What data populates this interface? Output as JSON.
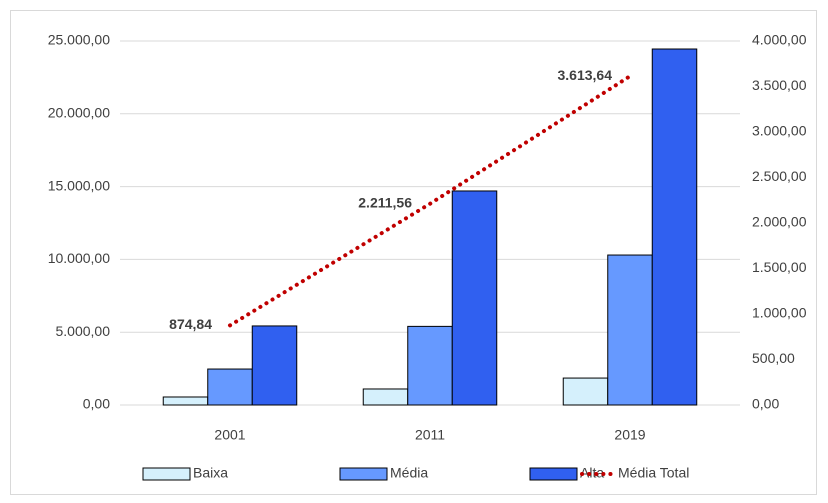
{
  "chart_data": {
    "type": "bar",
    "categories": [
      "2001",
      "2011",
      "2019"
    ],
    "series": [
      {
        "name": "Baixa",
        "color": "#d5f0fc",
        "values": [
          550,
          1100,
          1850
        ]
      },
      {
        "name": "Média",
        "color": "#6699ff",
        "values": [
          2470,
          5400,
          10300
        ]
      },
      {
        "name": "Alta",
        "color": "#3060f0",
        "values": [
          5430,
          14700,
          24450
        ]
      },
      {
        "name": "Média Total",
        "type": "line",
        "axis": "y2",
        "color": "#c00000",
        "values": [
          874.84,
          2211.56,
          3613.64
        ],
        "value_labels": [
          "874,84",
          "2.211,56",
          "3.613,64"
        ]
      }
    ],
    "ylim": [
      0,
      25000
    ],
    "yticks": [
      {
        "value": 0,
        "label": "0,00"
      },
      {
        "value": 5000,
        "label": "5.000,00"
      },
      {
        "value": 10000,
        "label": "10.000,00"
      },
      {
        "value": 15000,
        "label": "15.000,00"
      },
      {
        "value": 20000,
        "label": "20.000,00"
      },
      {
        "value": 25000,
        "label": "25.000,00"
      }
    ],
    "y2lim": [
      0,
      4000
    ],
    "y2ticks": [
      {
        "value": 0,
        "label": "0,00"
      },
      {
        "value": 500,
        "label": "500,00"
      },
      {
        "value": 1000,
        "label": "1.000,00"
      },
      {
        "value": 1500,
        "label": "1.500,00"
      },
      {
        "value": 2000,
        "label": "2.000,00"
      },
      {
        "value": 2500,
        "label": "2.500,00"
      },
      {
        "value": 3000,
        "label": "3.000,00"
      },
      {
        "value": 3500,
        "label": "3.500,00"
      },
      {
        "value": 4000,
        "label": "4.000,00"
      }
    ],
    "grid": true,
    "legend": "bottom"
  }
}
